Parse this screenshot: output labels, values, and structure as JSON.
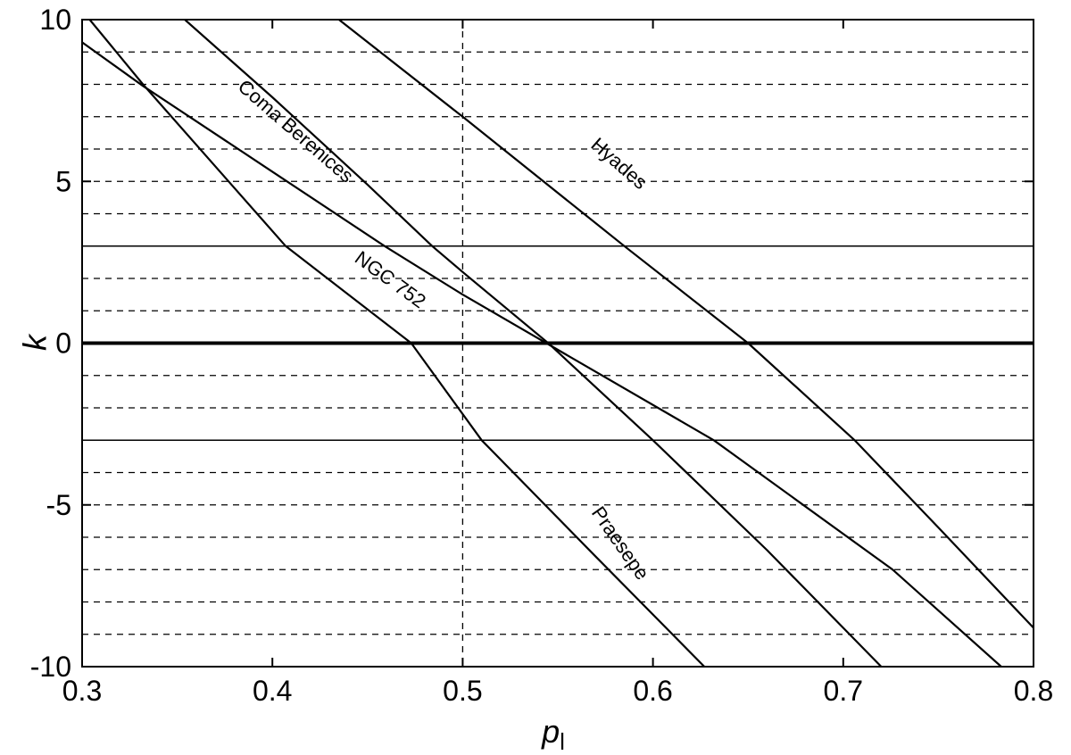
{
  "chart_data": {
    "type": "line",
    "x_label": "p",
    "x_label_sub": "l",
    "y_label": "k",
    "xlim": [
      0.3,
      0.8
    ],
    "ylim": [
      -10,
      10
    ],
    "xticks": [
      0.3,
      0.4,
      0.5,
      0.6,
      0.7,
      0.8
    ],
    "yticks": [
      -10,
      -5,
      0,
      5,
      10
    ],
    "reference_lines": {
      "dashed_y": [
        9,
        8,
        7,
        6,
        5,
        4,
        2,
        1,
        -1,
        -2,
        -4,
        -5,
        -6,
        -7,
        -8,
        -9
      ],
      "solid_y": [
        3,
        -3
      ],
      "bold_y": [
        0
      ],
      "dashed_x": [
        0.5
      ]
    },
    "series": [
      {
        "name": "Hyades",
        "color": "#000000",
        "x": [
          0.435,
          0.5,
          0.585,
          0.65,
          0.706,
          0.75,
          0.8
        ],
        "values": [
          10,
          7,
          3,
          0,
          -3,
          -5.7,
          -8.8
        ]
      },
      {
        "name": "Coma Berenices",
        "color": "#000000",
        "x": [
          0.354,
          0.4,
          0.45,
          0.484,
          0.5,
          0.545,
          0.6,
          0.66,
          0.72
        ],
        "values": [
          10,
          7.6,
          4.9,
          3,
          2.2,
          0,
          -3,
          -6.4,
          -10
        ]
      },
      {
        "name": "NGC 752",
        "color": "#000000",
        "x": [
          0.3,
          0.332,
          0.4,
          0.459,
          0.5,
          0.544,
          0.632,
          0.726,
          0.783
        ],
        "values": [
          9.3,
          7.95,
          5.3,
          3,
          1.5,
          0,
          -3,
          -7,
          -10
        ]
      },
      {
        "name": "Praesepe",
        "color": "#000000",
        "x": [
          0.304,
          0.332,
          0.407,
          0.473,
          0.51,
          0.57,
          0.627
        ],
        "values": [
          10,
          8,
          3,
          0,
          -3,
          -6.6,
          -10
        ]
      }
    ]
  }
}
